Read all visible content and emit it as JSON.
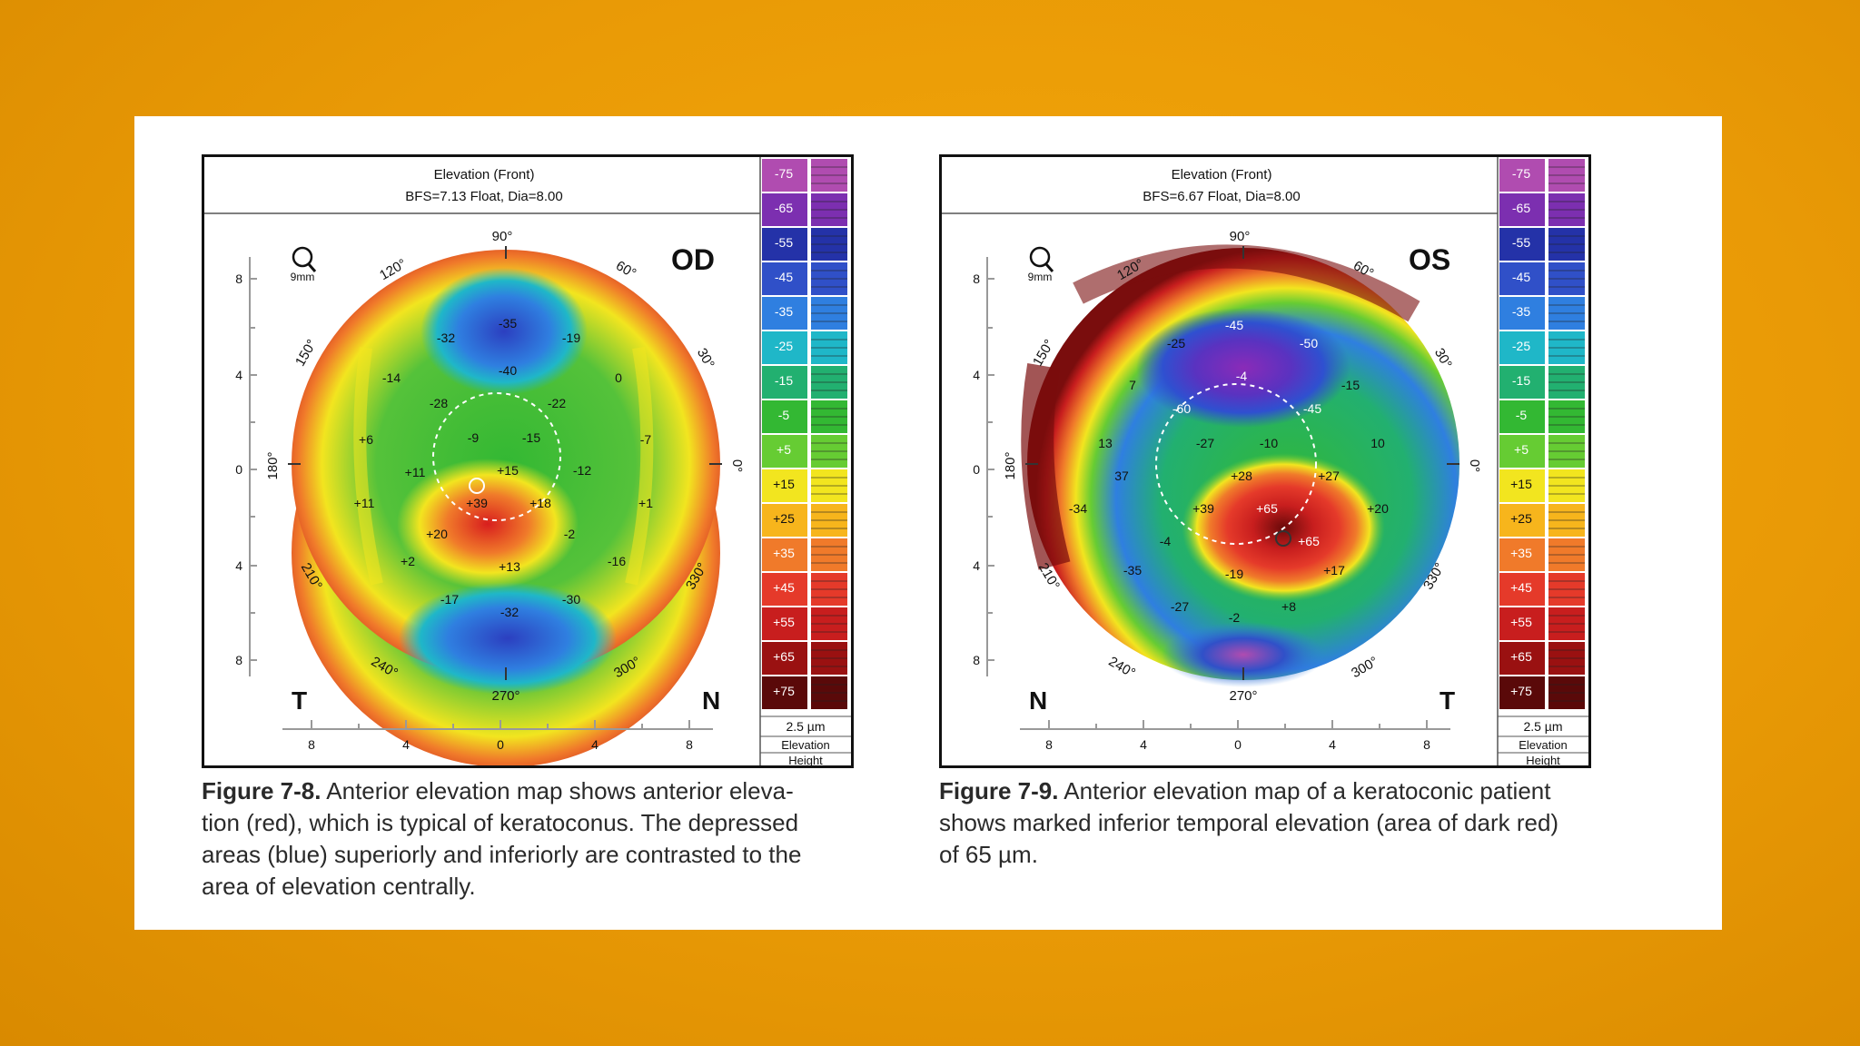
{
  "colors": {
    "background": "#e99a06",
    "card": "#ffffff",
    "scale": [
      "#b04cb0",
      "#7c2fb0",
      "#2432a8",
      "#3050c8",
      "#2f7fe0",
      "#1fb7c8",
      "#22b070",
      "#33b833",
      "#66cc33",
      "#f2e51f",
      "#f7b51c",
      "#f07a2a",
      "#e53a2a",
      "#c81e1e",
      "#9a1111",
      "#5a0909"
    ]
  },
  "figures": [
    {
      "header_title": "Elevation (Front)",
      "header_subtitle": "BFS=7.13 Float, Dia=8.00",
      "eye": "OD",
      "corner_left": "T",
      "corner_right": "N",
      "zoom_label": "9mm",
      "scale_values": [
        "-75",
        "-65",
        "-55",
        "-45",
        "-35",
        "-25",
        "-15",
        "-5",
        "+5",
        "+15",
        "+25",
        "+35",
        "+45",
        "+55",
        "+65",
        "+75"
      ],
      "scale_footer": [
        "2.5 µm",
        "Elevation",
        "Height"
      ],
      "y_ticks": [
        "8",
        "4",
        "0",
        "4",
        "8"
      ],
      "x_ticks": [
        "8",
        "4",
        "0",
        "4",
        "8"
      ],
      "angles": [
        "90°",
        "60°",
        "30°",
        "0°",
        "330°",
        "300°",
        "270°",
        "240°",
        "210°",
        "180°",
        "150°",
        "120°"
      ],
      "points": [
        "-35",
        "-32",
        "-19",
        "-40",
        "-14",
        "-28",
        "-22",
        "0",
        "-9",
        "-15",
        "+6",
        "-7",
        "+11",
        "+15",
        "-12",
        "+11",
        "+39",
        "+18",
        "+1",
        "+20",
        "-2",
        "+2",
        "+13",
        "-16",
        "-17",
        "-32",
        "-30"
      ],
      "caption_label": "Figure 7-8.",
      "caption_lines": [
        "Anterior elevation map shows anterior eleva-",
        "tion (red), which is typical of keratoconus. The depressed",
        "areas (blue) superiorly and inferiorly are contrasted to the",
        "area of elevation centrally."
      ]
    },
    {
      "header_title": "Elevation (Front)",
      "header_subtitle": "BFS=6.67 Float, Dia=8.00",
      "eye": "OS",
      "corner_left": "N",
      "corner_right": "T",
      "zoom_label": "9mm",
      "scale_values": [
        "-75",
        "-65",
        "-55",
        "-45",
        "-35",
        "-25",
        "-15",
        "-5",
        "+5",
        "+15",
        "+25",
        "+35",
        "+45",
        "+55",
        "+65",
        "+75"
      ],
      "scale_footer": [
        "2.5 µm",
        "Elevation",
        "Height"
      ],
      "y_ticks": [
        "8",
        "4",
        "0",
        "4",
        "8"
      ],
      "x_ticks": [
        "8",
        "4",
        "0",
        "4",
        "8"
      ],
      "angles": [
        "90°",
        "60°",
        "30°",
        "0°",
        "330°",
        "300°",
        "270°",
        "240°",
        "210°",
        "180°",
        "150°",
        "120°"
      ],
      "points": [
        "-45",
        "-25",
        "-50",
        "-4",
        "7",
        "-15",
        "-60",
        "-45",
        "13",
        "-27",
        "-10",
        "10",
        "37",
        "+28",
        "+27",
        "-34",
        "+39",
        "+65",
        "+20",
        "-4",
        "+65",
        "-35",
        "-19",
        "+17",
        "-27",
        "-2",
        "+8"
      ],
      "caption_label": "Figure 7-9.",
      "caption_lines": [
        "Anterior elevation map of a keratoconic patient",
        "shows marked inferior temporal elevation (area of dark red)",
        "of 65 µm."
      ]
    }
  ]
}
